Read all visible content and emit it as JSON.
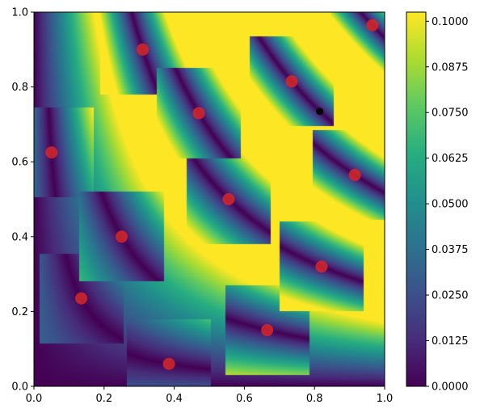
{
  "chart_data": {
    "type": "heatmap",
    "title": "",
    "xlabel": "",
    "ylabel": "",
    "xlim": [
      0,
      1
    ],
    "ylim": [
      0,
      1
    ],
    "colormap": "viridis",
    "grid": false,
    "x_ticks": [
      "0.0",
      "0.2",
      "0.4",
      "0.6",
      "0.8",
      "1.0"
    ],
    "y_ticks": [
      "0.0",
      "0.2",
      "0.4",
      "0.6",
      "0.8",
      "1.0"
    ],
    "colorbar": {
      "min": 0.0,
      "max": 0.1025,
      "ticks": [
        "0.0000",
        "0.0125",
        "0.0250",
        "0.0375",
        "0.0500",
        "0.0625",
        "0.0750",
        "0.0875",
        "0.1000"
      ]
    },
    "red_points": [
      {
        "x": 0.05,
        "y": 0.625
      },
      {
        "x": 0.135,
        "y": 0.235
      },
      {
        "x": 0.25,
        "y": 0.4
      },
      {
        "x": 0.31,
        "y": 0.9
      },
      {
        "x": 0.385,
        "y": 0.06
      },
      {
        "x": 0.47,
        "y": 0.73
      },
      {
        "x": 0.555,
        "y": 0.5
      },
      {
        "x": 0.665,
        "y": 0.15
      },
      {
        "x": 0.735,
        "y": 0.815
      },
      {
        "x": 0.82,
        "y": 0.32
      },
      {
        "x": 0.915,
        "y": 0.565
      },
      {
        "x": 0.965,
        "y": 0.965
      }
    ],
    "black_point": {
      "x": 0.815,
      "y": 0.735
    },
    "colors": {
      "red_point": "#d62728",
      "black_point": "#000000"
    }
  }
}
